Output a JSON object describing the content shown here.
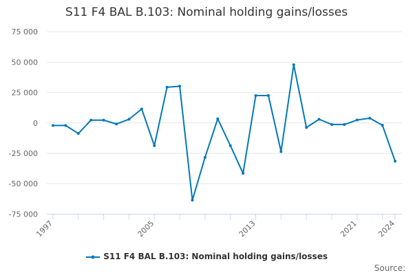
{
  "chart_data": {
    "type": "line",
    "title": "S11 F4 BAL B.103: Nominal holding gains/losses",
    "xlabel": "",
    "ylabel": "",
    "x": [
      1997,
      1998,
      1999,
      2000,
      2001,
      2002,
      2003,
      2004,
      2005,
      2006,
      2007,
      2008,
      2009,
      2010,
      2011,
      2012,
      2013,
      2014,
      2015,
      2016,
      2017,
      2018,
      2019,
      2020,
      2021,
      2022,
      2023,
      2024
    ],
    "series": [
      {
        "name": "S11 F4 BAL B.103: Nominal holding gains/losses",
        "color": "#0077bb",
        "values": [
          -2100,
          -2100,
          -8700,
          2300,
          2300,
          -900,
          3000,
          11500,
          -18700,
          29400,
          30200,
          -63500,
          -28300,
          3400,
          -18700,
          -41500,
          22500,
          22500,
          -23600,
          47900,
          -3800,
          3000,
          -1300,
          -1300,
          2400,
          3900,
          -1900,
          -31500
        ]
      }
    ],
    "ylim": [
      -75000,
      75000
    ],
    "y_ticks": [
      "75 000",
      "50 000",
      "25 000",
      "0",
      "-25 000",
      "-50 000",
      "-75 000"
    ],
    "y_tick_values": [
      75000,
      50000,
      25000,
      0,
      -25000,
      -50000,
      -75000
    ],
    "x_tick_labels": [
      "1997",
      "2005",
      "2013",
      "2021",
      "2024"
    ],
    "grid": true,
    "legend": "bottom"
  },
  "source_label": "Source:"
}
